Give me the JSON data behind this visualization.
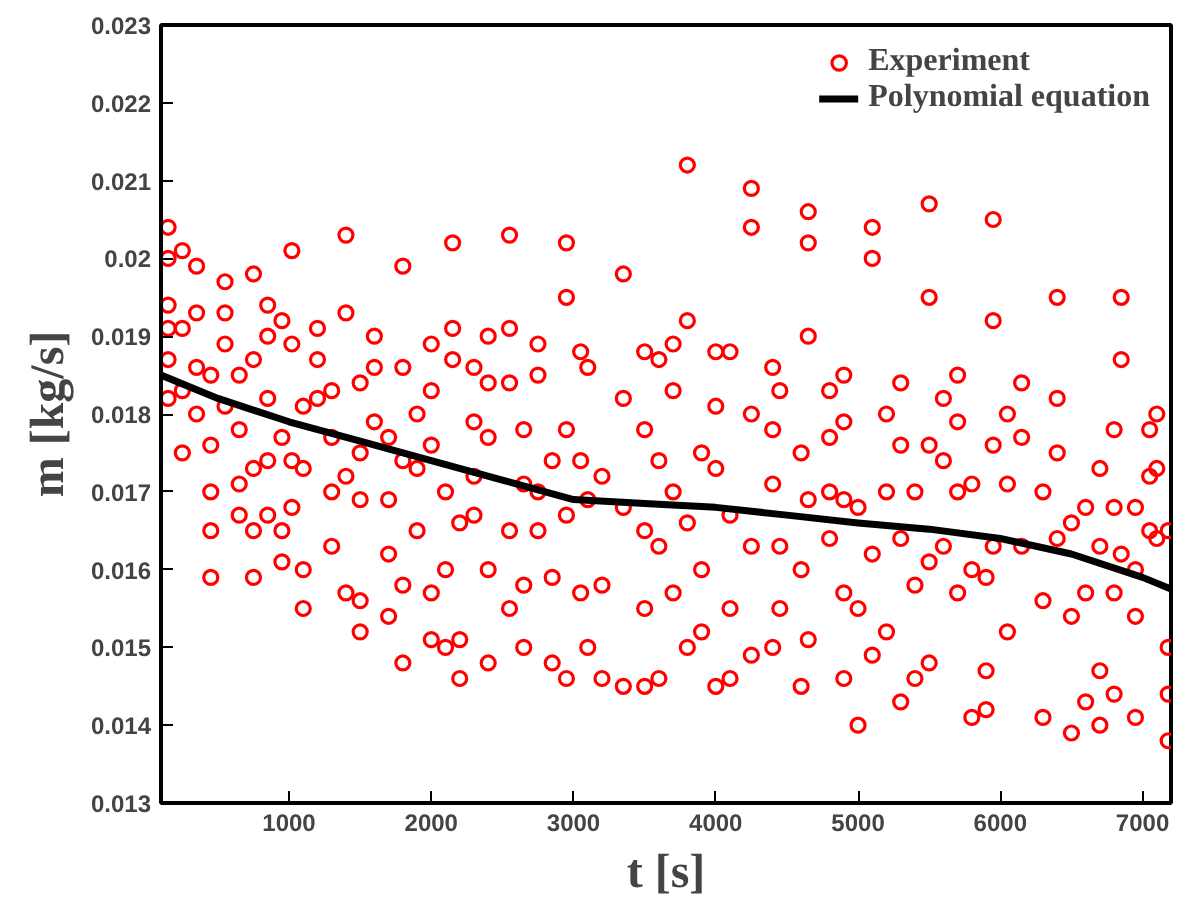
{
  "chart_data": {
    "type": "scatter",
    "xlabel": "t [s]",
    "ylabel": "m [kg/s]",
    "xlim": [
      100,
      7200
    ],
    "ylim": [
      0.013,
      0.023
    ],
    "xticks": [
      1000,
      2000,
      3000,
      4000,
      5000,
      6000,
      7000
    ],
    "yticks": [
      0.013,
      0.014,
      0.015,
      0.016,
      0.017,
      0.018,
      0.019,
      0.02,
      0.021,
      0.022,
      0.023
    ],
    "grid": false,
    "legend": "top right",
    "series": [
      {
        "name": "Experiment",
        "marker": "circle",
        "color": "#ff0000",
        "x": [
          150,
          150,
          150,
          150,
          150,
          150,
          250,
          250,
          250,
          250,
          350,
          350,
          350,
          350,
          450,
          450,
          450,
          450,
          450,
          550,
          550,
          550,
          550,
          650,
          650,
          650,
          650,
          750,
          750,
          750,
          750,
          750,
          850,
          850,
          850,
          850,
          850,
          950,
          950,
          950,
          950,
          1020,
          1020,
          1020,
          1020,
          1100,
          1100,
          1100,
          1100,
          1200,
          1200,
          1200,
          1300,
          1300,
          1300,
          1300,
          1400,
          1400,
          1400,
          1400,
          1500,
          1500,
          1500,
          1500,
          1500,
          1600,
          1600,
          1600,
          1700,
          1700,
          1700,
          1700,
          1800,
          1800,
          1800,
          1800,
          1800,
          1900,
          1900,
          1900,
          2000,
          2000,
          2000,
          2000,
          2000,
          2100,
          2100,
          2100,
          2150,
          2150,
          2150,
          2200,
          2200,
          2200,
          2300,
          2300,
          2300,
          2300,
          2400,
          2400,
          2400,
          2400,
          2400,
          2550,
          2550,
          2550,
          2550,
          2550,
          2650,
          2650,
          2650,
          2650,
          2750,
          2750,
          2750,
          2750,
          2850,
          2850,
          2850,
          2950,
          2950,
          2950,
          2950,
          2950,
          3050,
          3050,
          3050,
          3100,
          3100,
          3100,
          3200,
          3200,
          3200,
          3350,
          3350,
          3350,
          3350,
          3500,
          3500,
          3500,
          3500,
          3500,
          3600,
          3600,
          3600,
          3600,
          3700,
          3700,
          3700,
          3700,
          3800,
          3800,
          3800,
          3800,
          3900,
          3900,
          3900,
          4000,
          4000,
          4000,
          4000,
          4100,
          4100,
          4100,
          4100,
          4250,
          4250,
          4250,
          4250,
          4250,
          4400,
          4400,
          4400,
          4400,
          4450,
          4450,
          4450,
          4600,
          4600,
          4600,
          4650,
          4650,
          4650,
          4650,
          4650,
          4800,
          4800,
          4800,
          4800,
          4900,
          4900,
          4900,
          4900,
          4900,
          5000,
          5000,
          5000,
          5100,
          5100,
          5100,
          5100,
          5200,
          5200,
          5200,
          5300,
          5300,
          5300,
          5300,
          5400,
          5400,
          5400,
          5500,
          5500,
          5500,
          5500,
          5500,
          5600,
          5600,
          5600,
          5700,
          5700,
          5700,
          5700,
          5800,
          5800,
          5800,
          5900,
          5900,
          5900,
          5950,
          5950,
          5950,
          5950,
          6050,
          6050,
          6050,
          6150,
          6150,
          6150,
          6300,
          6300,
          6300,
          6400,
          6400,
          6400,
          6400,
          6500,
          6500,
          6500,
          6600,
          6600,
          6600,
          6700,
          6700,
          6700,
          6700,
          6800,
          6800,
          6800,
          6800,
          6850,
          6850,
          6850,
          6950,
          6950,
          6950,
          6950,
          7050,
          7050,
          7050,
          7100,
          7100,
          7100,
          7180,
          7180,
          7180,
          7180
        ],
        "values": [
          0.0204,
          0.02,
          0.0194,
          0.0187,
          0.0182,
          0.0191,
          0.0201,
          0.0191,
          0.0183,
          0.0175,
          0.0199,
          0.0193,
          0.0186,
          0.018,
          0.0176,
          0.017,
          0.0165,
          0.0159,
          0.0185,
          0.0197,
          0.0193,
          0.0189,
          0.0181,
          0.0185,
          0.0178,
          0.0171,
          0.0167,
          0.0198,
          0.0187,
          0.0173,
          0.0165,
          0.0159,
          0.0194,
          0.019,
          0.0182,
          0.0174,
          0.0167,
          0.0192,
          0.0177,
          0.0165,
          0.0161,
          0.0201,
          0.0189,
          0.0174,
          0.0168,
          0.0181,
          0.0173,
          0.016,
          0.0155,
          0.0191,
          0.0187,
          0.0182,
          0.0183,
          0.0177,
          0.017,
          0.0163,
          0.0203,
          0.0193,
          0.0172,
          0.0157,
          0.0184,
          0.0175,
          0.0169,
          0.0152,
          0.0156,
          0.019,
          0.0186,
          0.0179,
          0.0177,
          0.0169,
          0.0162,
          0.0154,
          0.0199,
          0.0186,
          0.0174,
          0.0158,
          0.0148,
          0.018,
          0.0173,
          0.0165,
          0.0189,
          0.0183,
          0.0176,
          0.0157,
          0.0151,
          0.017,
          0.016,
          0.015,
          0.0202,
          0.0191,
          0.0187,
          0.0166,
          0.0151,
          0.0146,
          0.0186,
          0.0179,
          0.0172,
          0.0167,
          0.019,
          0.0184,
          0.0177,
          0.016,
          0.0148,
          0.0203,
          0.0191,
          0.0184,
          0.0165,
          0.0155,
          0.0178,
          0.0171,
          0.0158,
          0.015,
          0.0189,
          0.0185,
          0.017,
          0.0165,
          0.0174,
          0.0159,
          0.0148,
          0.0202,
          0.0195,
          0.0178,
          0.0167,
          0.0146,
          0.0188,
          0.0174,
          0.0157,
          0.0186,
          0.0169,
          0.015,
          0.0172,
          0.0158,
          0.0146,
          0.0198,
          0.0182,
          0.0168,
          0.0145,
          0.0188,
          0.0178,
          0.0165,
          0.0155,
          0.0145,
          0.0187,
          0.0174,
          0.0163,
          0.0146,
          0.0189,
          0.0183,
          0.017,
          0.0157,
          0.0212,
          0.0192,
          0.0166,
          0.015,
          0.0175,
          0.016,
          0.0152,
          0.0188,
          0.0181,
          0.0173,
          0.0145,
          0.0188,
          0.0167,
          0.0155,
          0.0146,
          0.0209,
          0.0204,
          0.018,
          0.0163,
          0.0149,
          0.0186,
          0.0178,
          0.0171,
          0.015,
          0.0183,
          0.0163,
          0.0155,
          0.0175,
          0.016,
          0.0145,
          0.0206,
          0.0202,
          0.019,
          0.0169,
          0.0151,
          0.0183,
          0.0177,
          0.017,
          0.0164,
          0.0185,
          0.0179,
          0.0169,
          0.0157,
          0.0146,
          0.0168,
          0.0155,
          0.014,
          0.0204,
          0.02,
          0.0162,
          0.0149,
          0.018,
          0.017,
          0.0152,
          0.0184,
          0.0176,
          0.0164,
          0.0143,
          0.017,
          0.0158,
          0.0146,
          0.0207,
          0.0195,
          0.0176,
          0.0161,
          0.0148,
          0.0182,
          0.0174,
          0.0163,
          0.0185,
          0.0179,
          0.017,
          0.0157,
          0.0171,
          0.016,
          0.0141,
          0.0159,
          0.0147,
          0.0142,
          0.0205,
          0.0192,
          0.0176,
          0.0163,
          0.018,
          0.0171,
          0.0152,
          0.0184,
          0.0177,
          0.0163,
          0.017,
          0.0156,
          0.0141,
          0.0195,
          0.0182,
          0.0175,
          0.0164,
          0.0166,
          0.0154,
          0.0139,
          0.0168,
          0.0157,
          0.0143,
          0.0173,
          0.0163,
          0.0147,
          0.014,
          0.0178,
          0.0168,
          0.0157,
          0.0144,
          0.0195,
          0.0187,
          0.0162,
          0.0168,
          0.016,
          0.0154,
          0.0141,
          0.0178,
          0.0172,
          0.0165,
          0.018,
          0.0173,
          0.0164,
          0.0165,
          0.015,
          0.0144,
          0.0138
        ]
      },
      {
        "name": "Polynomial equation",
        "type": "line",
        "marker": "none",
        "color": "#000000",
        "x": [
          100,
          500,
          1000,
          1500,
          2000,
          2500,
          3000,
          3500,
          4000,
          4500,
          5000,
          5500,
          6000,
          6500,
          7000,
          7200
        ],
        "values": [
          0.0185,
          0.0182,
          0.0179,
          0.01765,
          0.0174,
          0.01715,
          0.0169,
          0.01685,
          0.0168,
          0.0167,
          0.0166,
          0.01652,
          0.0164,
          0.0162,
          0.0159,
          0.01575
        ]
      }
    ]
  }
}
